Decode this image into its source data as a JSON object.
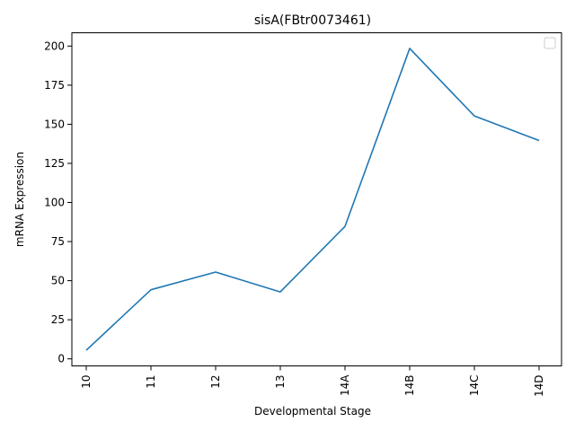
{
  "chart_data": {
    "type": "line",
    "title": "sisA(FBtr0073461)",
    "xlabel": "Developmental Stage",
    "ylabel": "mRNA Expression",
    "categories": [
      "10",
      "11",
      "12",
      "13",
      "14A",
      "14B",
      "14C",
      "14D"
    ],
    "series": [
      {
        "values": [
          5.5,
          44.2,
          55.5,
          42.8,
          84.7,
          198.5,
          155.3,
          139.6
        ],
        "color": "#1f77b4"
      }
    ],
    "ylim": [
      -4.5,
      208.5
    ],
    "yticks": [
      0,
      25,
      50,
      75,
      100,
      125,
      150,
      175,
      200
    ],
    "grid": false,
    "legend": {
      "placement": "top-right",
      "entries": []
    }
  }
}
